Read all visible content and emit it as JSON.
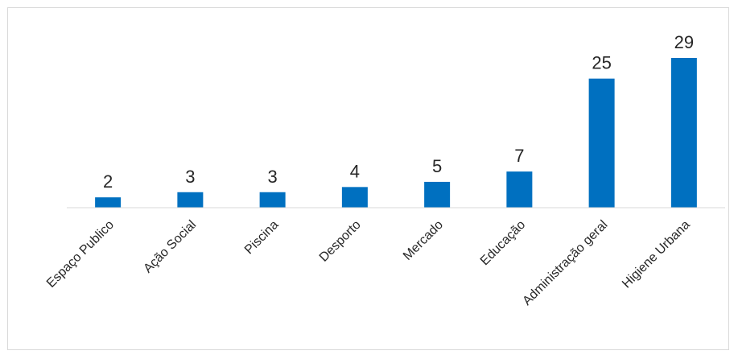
{
  "chart_data": {
    "type": "bar",
    "categories": [
      "Espaço Publico",
      "Ação Social",
      "Piscina",
      "Desporto",
      "Mercado",
      "Educação",
      "Administração geral",
      "Higiene Urbana"
    ],
    "values": [
      2,
      3,
      3,
      4,
      5,
      7,
      25,
      29
    ],
    "data_labels": [
      "2",
      "3",
      "3",
      "4",
      "5",
      "7",
      "25",
      "29"
    ],
    "title": "",
    "xlabel": "",
    "ylabel": "",
    "ylim": [
      0,
      29
    ],
    "grid": false,
    "legend": "none",
    "bar_color": "#0070c0",
    "axis_color": "#d9d9d9"
  }
}
